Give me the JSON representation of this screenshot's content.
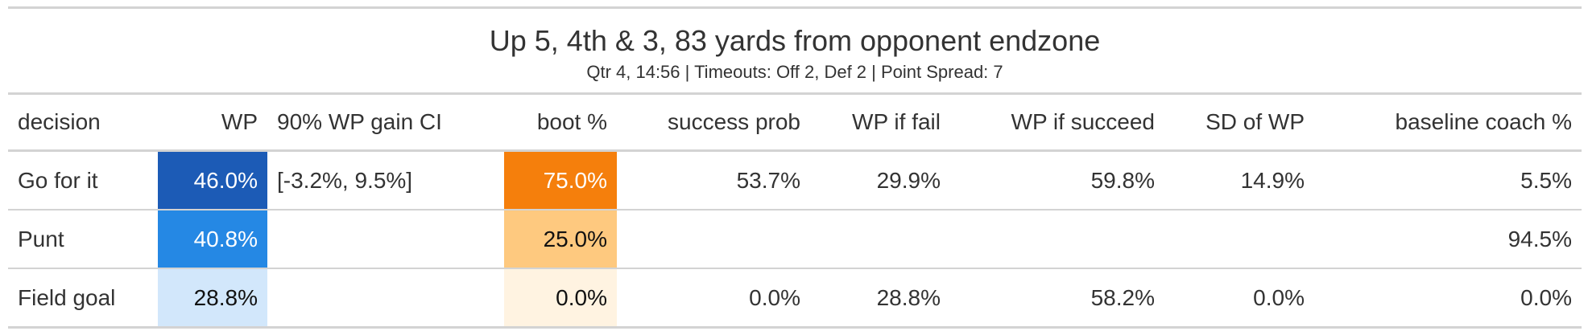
{
  "title": "Up 5, 4th & 3, 83 yards from opponent endzone",
  "subtitle": "Qtr 4, 14:56 | Timeouts: Off 2, Def 2 | Point Spread: 7",
  "columns": [
    "decision",
    "WP",
    "90% WP gain CI",
    "boot %",
    "success prob",
    "WP if fail",
    "WP if succeed",
    "SD of WP",
    "baseline coach %"
  ],
  "rows": [
    {
      "decision": "Go for it",
      "wp": "46.0%",
      "wp_ci": "[-3.2%, 9.5%]",
      "boot": "75.0%",
      "success_prob": "53.7%",
      "wp_fail": "29.9%",
      "wp_succeed": "59.8%",
      "sd_wp": "14.9%",
      "baseline": "5.5%",
      "wp_bg": "#1c5bb6",
      "wp_fg": "#ffffff",
      "boot_bg": "#f57f0c",
      "boot_fg": "#ffffff"
    },
    {
      "decision": "Punt",
      "wp": "40.8%",
      "wp_ci": "",
      "boot": "25.0%",
      "success_prob": "",
      "wp_fail": "",
      "wp_succeed": "",
      "sd_wp": "",
      "baseline": "94.5%",
      "wp_bg": "#2588e4",
      "wp_fg": "#ffffff",
      "boot_bg": "#fec97f",
      "boot_fg": "#111111"
    },
    {
      "decision": "Field goal",
      "wp": "28.8%",
      "wp_ci": "",
      "boot": "0.0%",
      "success_prob": "0.0%",
      "wp_fail": "28.8%",
      "wp_succeed": "58.2%",
      "sd_wp": "0.0%",
      "baseline": "0.0%",
      "wp_bg": "#d2e7fb",
      "wp_fg": "#111111",
      "boot_bg": "#fff3e1",
      "boot_fg": "#111111"
    }
  ]
}
